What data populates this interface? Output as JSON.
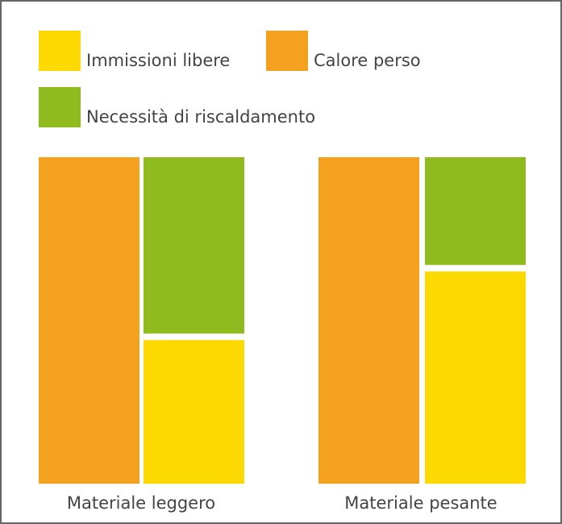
{
  "chart_data": {
    "type": "bar",
    "categories": [
      "Materiale leggero",
      "Materiale pesante"
    ],
    "series": [
      {
        "name": "Calore perso",
        "color": "#f4a11f",
        "values": [
          100,
          100
        ]
      },
      {
        "name": "Immissioni libere",
        "color": "#fcd900",
        "values": [
          45,
          66
        ]
      },
      {
        "name": "Necessità di riscaldamento",
        "color": "#8fbb1f",
        "values": [
          55,
          34
        ]
      }
    ],
    "ylim": [
      0,
      100
    ]
  }
}
